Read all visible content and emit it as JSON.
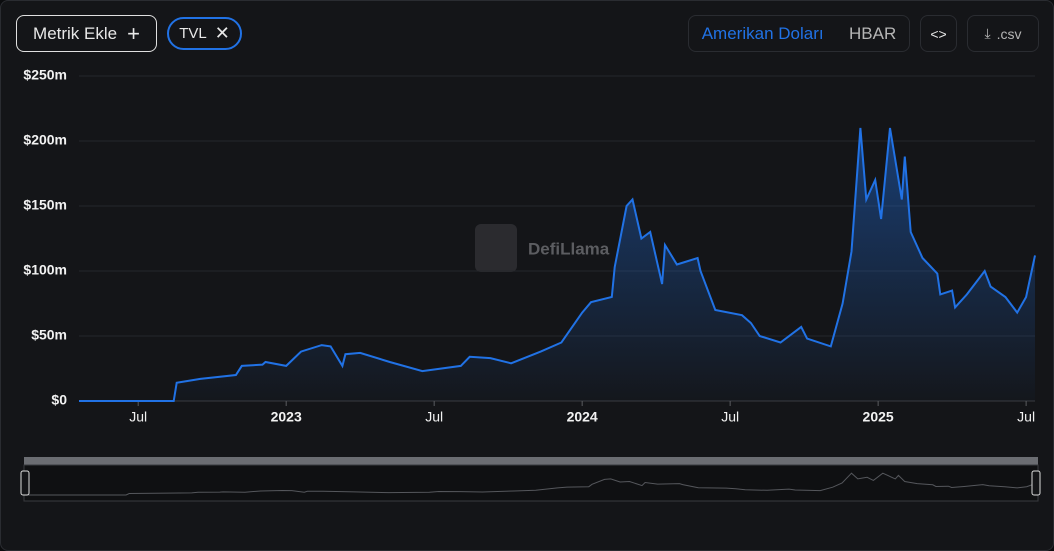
{
  "controls": {
    "add_metric": "Metrik Ekle",
    "metric_tag": "TVL",
    "currency_usd": "Amerikan Doları",
    "currency_token": "HBAR",
    "csv": ".csv"
  },
  "watermark": "DefiLlama",
  "chart_data": {
    "type": "line",
    "x": [
      2022.3,
      2022.62,
      2022.63,
      2022.71,
      2022.83,
      2022.85,
      2022.92,
      2022.93,
      2023.0,
      2023.05,
      2023.12,
      2023.15,
      2023.19,
      2023.2,
      2023.25,
      2023.35,
      2023.46,
      2023.59,
      2023.62,
      2023.69,
      2023.76,
      2023.86,
      2023.93,
      2024.0,
      2024.03,
      2024.1,
      2024.11,
      2024.15,
      2024.17,
      2024.2,
      2024.23,
      2024.27,
      2024.28,
      2024.32,
      2024.39,
      2024.4,
      2024.45,
      2024.54,
      2024.57,
      2024.6,
      2024.67,
      2024.74,
      2024.76,
      2024.84,
      2024.88,
      2024.91,
      2024.94,
      2024.96,
      2024.99,
      2025.01,
      2025.04,
      2025.08,
      2025.09,
      2025.11,
      2025.15,
      2025.2,
      2025.21,
      2025.25,
      2025.26,
      2025.3,
      2025.36,
      2025.38,
      2025.43,
      2025.47,
      2025.5,
      2025.53
    ],
    "series": [
      {
        "name": "TVL",
        "color": "#2172e5",
        "values": [
          0,
          0,
          14,
          17,
          20,
          27,
          28,
          30,
          27,
          38,
          43,
          42,
          27,
          36,
          37,
          30,
          23,
          27,
          34,
          33,
          29,
          38,
          45,
          68,
          76,
          80,
          103,
          150,
          155,
          125,
          130,
          90,
          120,
          105,
          110,
          100,
          70,
          66,
          60,
          50,
          45,
          57,
          48,
          42,
          75,
          115,
          210,
          155,
          170,
          140,
          210,
          155,
          188,
          130,
          110,
          98,
          82,
          85,
          72,
          82,
          100,
          88,
          80,
          68,
          80,
          112
        ]
      }
    ],
    "xlim": [
      2022.3,
      2025.53
    ],
    "xticks": [
      {
        "value": 2022.5,
        "label": "Jul"
      },
      2023,
      {
        "value": 2023.5,
        "label": "Jul"
      },
      2024,
      {
        "value": 2024.5,
        "label": "Jul"
      },
      2025,
      {
        "value": 2025.5,
        "label": "Jul"
      }
    ],
    "ylim": [
      0,
      250
    ],
    "yticks": [
      {
        "value": 0,
        "label": "$0"
      },
      {
        "value": 50,
        "label": "$50m"
      },
      {
        "value": 100,
        "label": "$100m"
      },
      {
        "value": 150,
        "label": "$150m"
      },
      {
        "value": 200,
        "label": "$200m"
      },
      {
        "value": 250,
        "label": "$250m"
      }
    ],
    "grid": true
  }
}
